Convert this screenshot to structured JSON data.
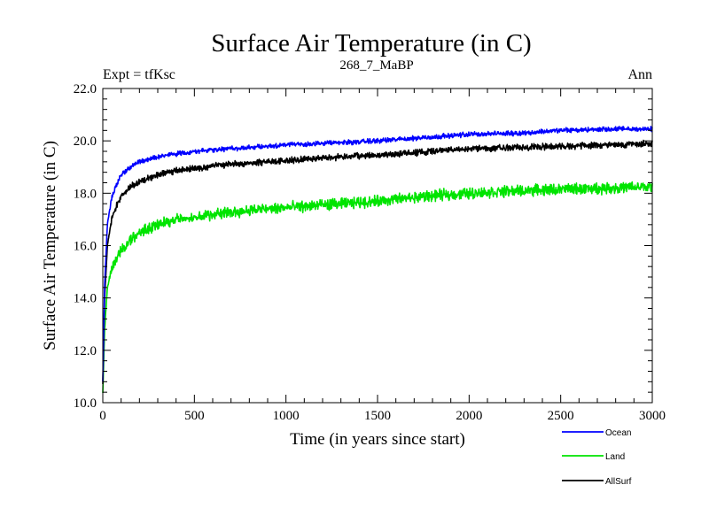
{
  "chart_data": {
    "type": "line",
    "title": "Surface Air Temperature (in C)",
    "subtitle_left": "Expt = tfKsc",
    "subtitle_center": "268_7_MaBP",
    "subtitle_right": "Ann",
    "xlabel": "Time (in years since start)",
    "ylabel": "Surface Air Temperature (in C)",
    "xlim": [
      0,
      3000
    ],
    "ylim": [
      10,
      22
    ],
    "x_ticks": [
      0,
      500,
      1000,
      1500,
      2000,
      2500,
      3000
    ],
    "x_tick_labels": [
      "0",
      "500",
      "1000",
      "1500",
      "2000",
      "2500",
      "3000"
    ],
    "y_ticks": [
      10,
      12,
      14,
      16,
      18,
      20,
      22
    ],
    "y_tick_labels": [
      "10.0",
      "12.0",
      "14.0",
      "16.0",
      "18.0",
      "20.0",
      "22.0"
    ],
    "legend_position": "bottom-right-outside",
    "series": [
      {
        "name": "Ocean",
        "color": "#0000ff",
        "noise": 0.07,
        "x": [
          0,
          10,
          25,
          50,
          100,
          150,
          200,
          300,
          400,
          500,
          600,
          800,
          1000,
          1200,
          1500,
          1800,
          2000,
          2300,
          2500,
          2800,
          3000
        ],
        "values": [
          10.8,
          14.5,
          16.8,
          17.9,
          18.7,
          19.0,
          19.2,
          19.4,
          19.5,
          19.6,
          19.65,
          19.75,
          19.85,
          19.9,
          20.0,
          20.15,
          20.25,
          20.3,
          20.4,
          20.45,
          20.45
        ]
      },
      {
        "name": "Land",
        "color": "#00e400",
        "noise": 0.16,
        "x": [
          0,
          10,
          25,
          50,
          100,
          150,
          200,
          300,
          400,
          500,
          600,
          800,
          1000,
          1200,
          1500,
          1800,
          2000,
          2300,
          2500,
          2800,
          3000
        ],
        "values": [
          10.4,
          12.8,
          14.4,
          15.2,
          15.8,
          16.2,
          16.5,
          16.8,
          17.0,
          17.1,
          17.2,
          17.35,
          17.45,
          17.55,
          17.7,
          17.9,
          18.0,
          18.1,
          18.15,
          18.2,
          18.25
        ]
      },
      {
        "name": "AllSurf",
        "color": "#000000",
        "noise": 0.09,
        "x": [
          0,
          10,
          25,
          50,
          100,
          150,
          200,
          300,
          400,
          500,
          600,
          800,
          1000,
          1200,
          1500,
          1800,
          2000,
          2300,
          2500,
          2800,
          3000
        ],
        "values": [
          10.7,
          14.0,
          16.0,
          17.1,
          17.9,
          18.25,
          18.45,
          18.7,
          18.85,
          18.95,
          19.05,
          19.15,
          19.25,
          19.35,
          19.45,
          19.6,
          19.7,
          19.75,
          19.8,
          19.85,
          19.9
        ]
      }
    ]
  }
}
